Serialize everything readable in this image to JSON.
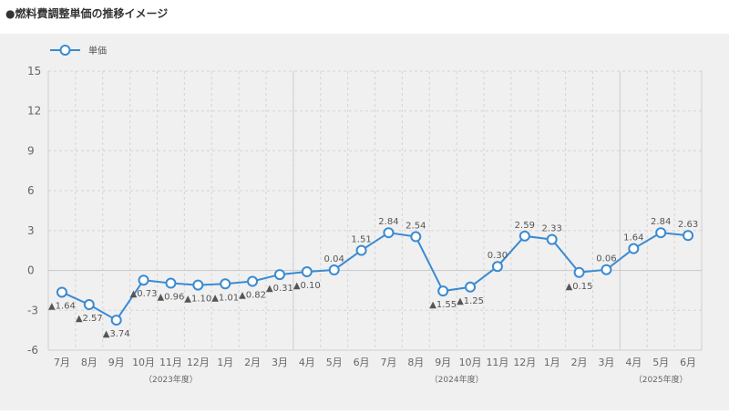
{
  "title": "●燃料費調整単価の推移イメージ",
  "chart_data": {
    "type": "line",
    "legend": {
      "label": "単価",
      "placement": "top-left"
    },
    "series": [
      {
        "name": "単価",
        "values": [
          -1.64,
          -2.57,
          -3.74,
          -0.73,
          -0.96,
          -1.1,
          -1.01,
          -0.82,
          -0.31,
          -0.1,
          0.04,
          1.51,
          2.84,
          2.54,
          -1.55,
          -1.25,
          0.3,
          2.59,
          2.33,
          -0.15,
          0.06,
          1.64,
          2.84,
          2.63
        ]
      }
    ],
    "categories": [
      "7月",
      "8月",
      "9月",
      "10月",
      "11月",
      "12月",
      "1月",
      "2月",
      "3月",
      "4月",
      "5月",
      "6月",
      "7月",
      "8月",
      "9月",
      "10月",
      "11月",
      "12月",
      "1月",
      "2月",
      "3月",
      "4月",
      "5月",
      "6月"
    ],
    "data_labels": [
      "▲1.64",
      "▲2.57",
      "▲3.74",
      "▲0.73",
      "▲0.96",
      "▲1.10",
      "▲1.01",
      "▲0.82",
      "▲0.31",
      "▲0.10",
      "0.04",
      "1.51",
      "2.84",
      "2.54",
      "▲1.55",
      "▲1.25",
      "0.30",
      "2.59",
      "2.33",
      "▲0.15",
      "0.06",
      "1.64",
      "2.84",
      "2.63"
    ],
    "yticks": [
      15,
      12,
      9,
      6,
      3,
      0,
      -3,
      -6
    ],
    "ylim": [
      -6,
      15
    ],
    "grid": true,
    "fiscal_years": [
      {
        "label": "（2023年度）",
        "start": 0,
        "end": 8
      },
      {
        "label": "（2024年度）",
        "start": 9,
        "end": 20
      },
      {
        "label": "（2025年度）",
        "start": 21,
        "end": 23
      }
    ],
    "colors": {
      "line": "#3a8ad2",
      "marker_fill": "#ffffff",
      "grid": "#d4d4d4",
      "label": "#555555",
      "axis_text": "#666666"
    }
  }
}
